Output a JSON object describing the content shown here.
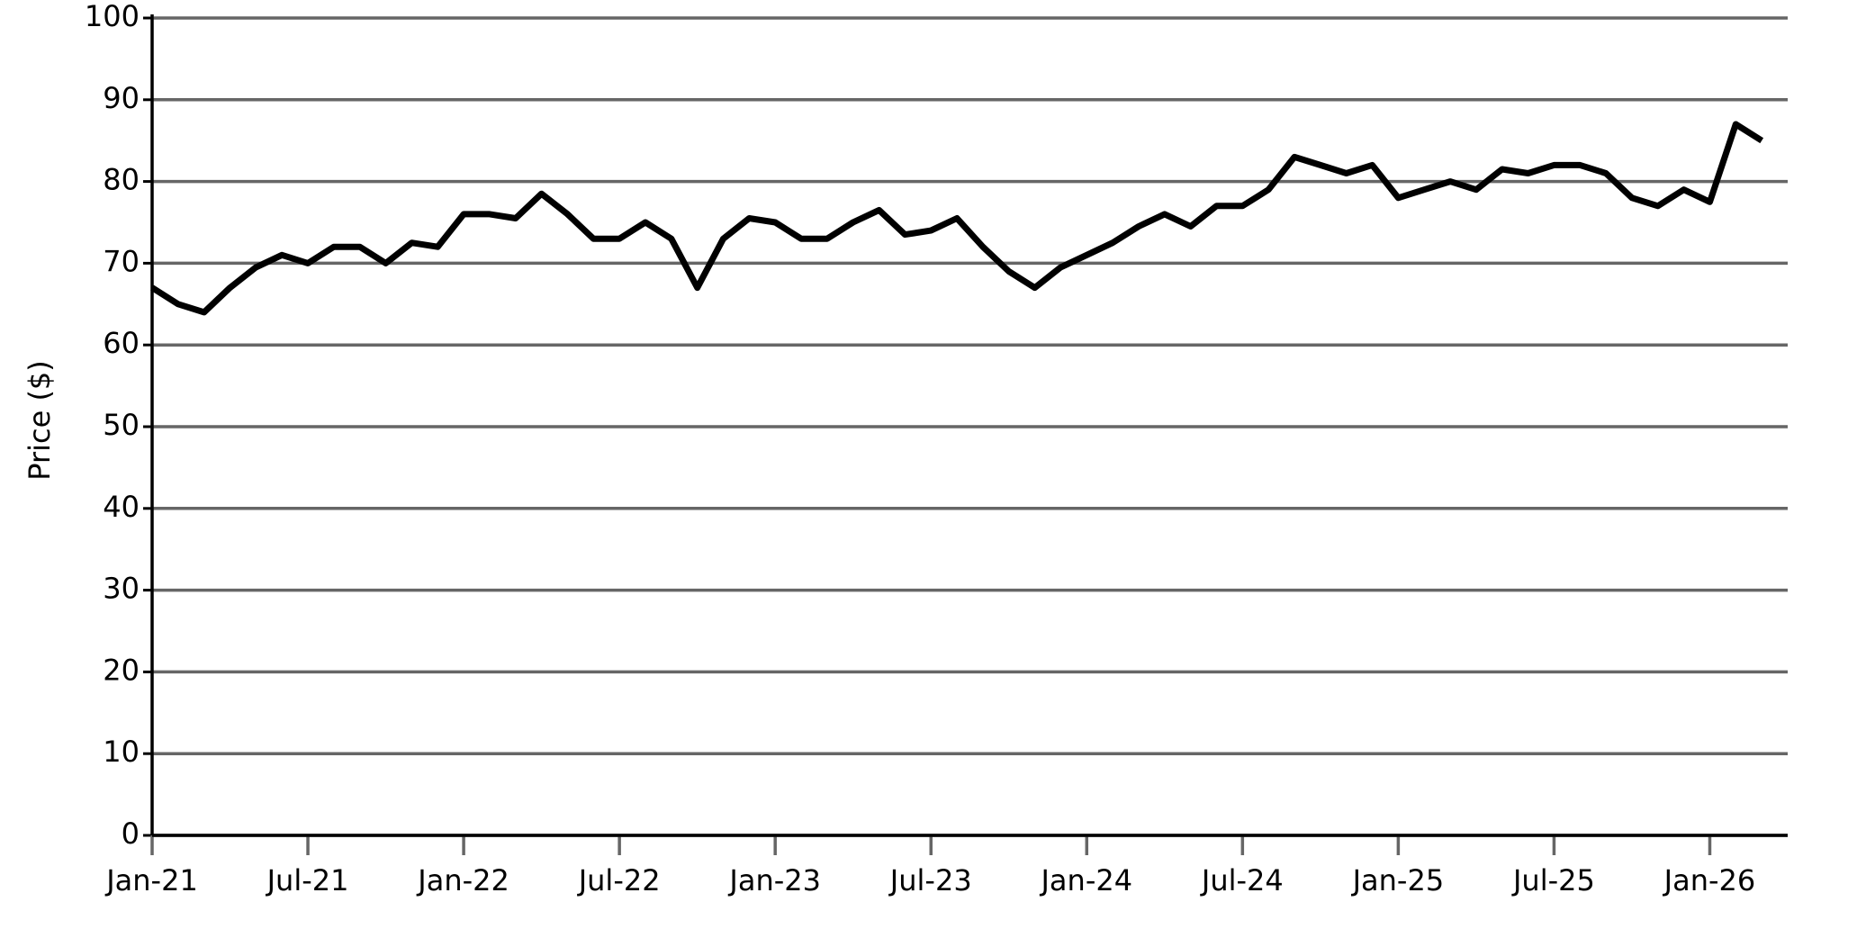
{
  "chart_data": {
    "type": "line",
    "ylabel": "Price ($)",
    "x": [
      "2021-01",
      "2021-02",
      "2021-03",
      "2021-04",
      "2021-05",
      "2021-06",
      "2021-07",
      "2021-08",
      "2021-09",
      "2021-10",
      "2021-11",
      "2021-12",
      "2022-01",
      "2022-02",
      "2022-03",
      "2022-04",
      "2022-05",
      "2022-06",
      "2022-07",
      "2022-08",
      "2022-09",
      "2022-10",
      "2022-11",
      "2022-12",
      "2023-01",
      "2023-02",
      "2023-03",
      "2023-04",
      "2023-05",
      "2023-06",
      "2023-07",
      "2023-08",
      "2023-09",
      "2023-10",
      "2023-11",
      "2023-12",
      "2024-01",
      "2024-02",
      "2024-03",
      "2024-04",
      "2024-05",
      "2024-06",
      "2024-07",
      "2024-08",
      "2024-09",
      "2024-10",
      "2024-11",
      "2024-12",
      "2025-01",
      "2025-02",
      "2025-03",
      "2025-04",
      "2025-05",
      "2025-06",
      "2025-07",
      "2025-08",
      "2025-09",
      "2025-10",
      "2025-11",
      "2025-12",
      "2026-01",
      "2026-02",
      "2026-03"
    ],
    "values": [
      67,
      65,
      64,
      67,
      69.5,
      71,
      70,
      72,
      72,
      70,
      72.5,
      72,
      76,
      76,
      75.5,
      78.5,
      76,
      73,
      73,
      75,
      73,
      67,
      73,
      75.5,
      75,
      73,
      73,
      75,
      76.5,
      73.5,
      74,
      75.5,
      72,
      69,
      67,
      69.5,
      71,
      72.5,
      74.5,
      76,
      74.5,
      77,
      77,
      79,
      83,
      82,
      81,
      82,
      78,
      79,
      80,
      79,
      81.5,
      81,
      82,
      82,
      81,
      78,
      77,
      79,
      77.5,
      87,
      85
    ],
    "color": "#000000",
    "xlim": [
      "2021-01",
      "2026-04"
    ],
    "xticks": [
      {
        "value": "2021-01",
        "label": "Jan-21"
      },
      {
        "value": "2021-07",
        "label": "Jul-21"
      },
      {
        "value": "2022-01",
        "label": "Jan-22"
      },
      {
        "value": "2022-07",
        "label": "Jul-22"
      },
      {
        "value": "2023-01",
        "label": "Jan-23"
      },
      {
        "value": "2023-07",
        "label": "Jul-23"
      },
      {
        "value": "2024-01",
        "label": "Jan-24"
      },
      {
        "value": "2024-07",
        "label": "Jul-24"
      },
      {
        "value": "2025-01",
        "label": "Jan-25"
      },
      {
        "value": "2025-07",
        "label": "Jul-25"
      },
      {
        "value": "2026-01",
        "label": "Jan-26"
      }
    ],
    "ylim": [
      0,
      100
    ],
    "yticks": [
      0,
      10,
      20,
      30,
      40,
      50,
      60,
      70,
      80,
      90,
      100
    ],
    "grid": true
  }
}
